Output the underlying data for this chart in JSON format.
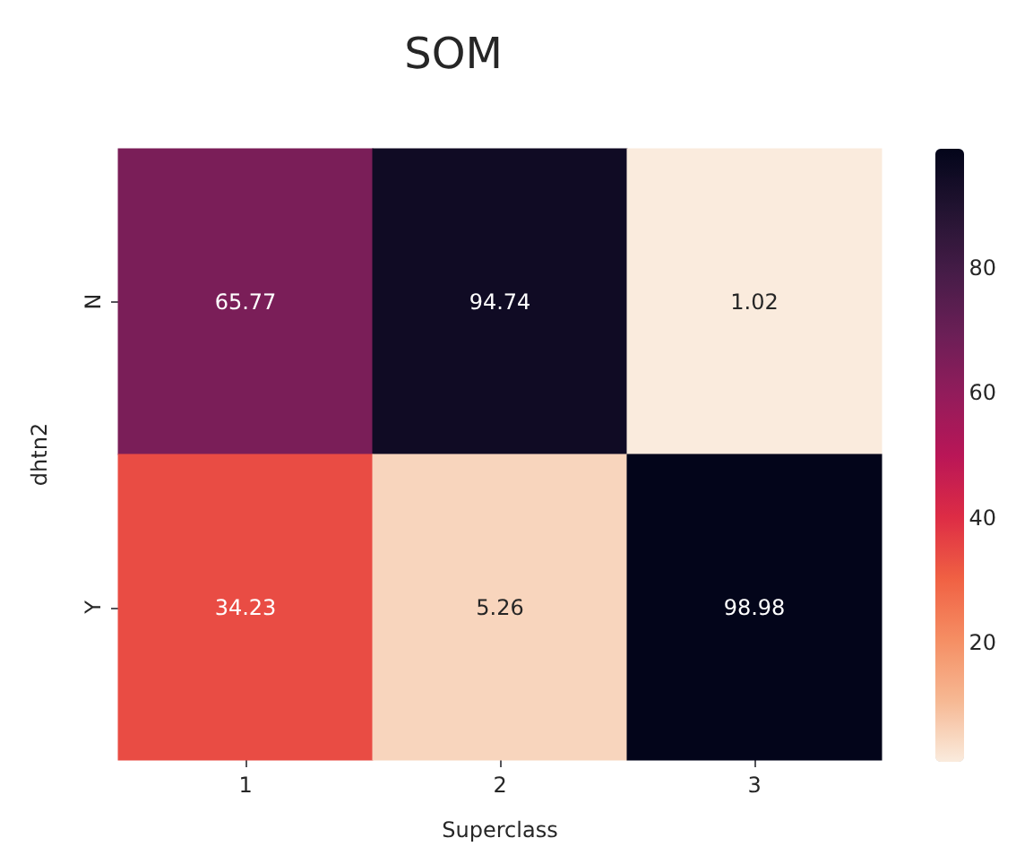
{
  "chart_data": {
    "type": "heatmap",
    "title": "SOM",
    "xlabel": "Superclass",
    "ylabel": "dhtn2",
    "categories": [
      "1",
      "2",
      "3"
    ],
    "y_categories": [
      "N",
      "Y"
    ],
    "cells": [
      [
        65.77,
        94.74,
        1.02
      ],
      [
        34.23,
        5.26,
        98.98
      ]
    ],
    "clim": [
      1.02,
      98.98
    ],
    "cticks": [
      20,
      40,
      60,
      80
    ],
    "data_labels": true
  }
}
